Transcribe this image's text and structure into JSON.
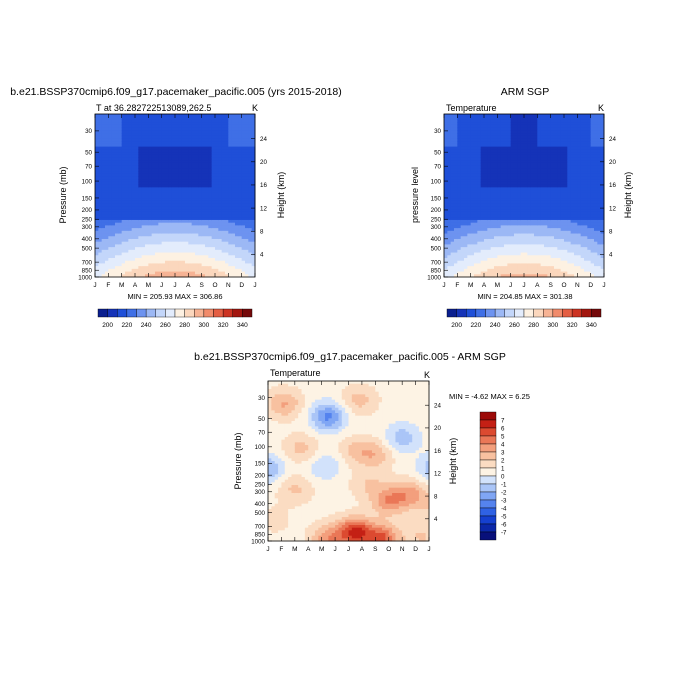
{
  "panels": [
    {
      "title": "b.e21.BSSP370cmip6.f09_g17.pacemaker_pacific.005 (yrs 2015-2018)",
      "subtitle": "T at 36.282722513089,262.5",
      "units": "K",
      "ylabel": "Pressure (mb)",
      "ylabel_right": "Height (km)",
      "minmax": "MIN = 205.93 MAX = 306.86"
    },
    {
      "title": "ARM SGP",
      "subtitle": "Temperature",
      "units": "K",
      "ylabel": "pressure level",
      "ylabel_right": "Height (km)",
      "minmax": "MIN = 204.85 MAX = 301.38"
    },
    {
      "title": "b.e21.BSSP370cmip6.f09_g17.pacemaker_pacific.005 - ARM SGP",
      "subtitle": "Temperature",
      "units": "K",
      "ylabel": "Pressure (mb)",
      "ylabel_right": "Height (km)",
      "minmax": "MIN =  -4.62 MAX =   6.25"
    }
  ],
  "chart_data": [
    {
      "type": "heatmap",
      "title": "b.e21.BSSP370cmip6.f09_g17.pacemaker_pacific.005 (yrs 2015-2018)",
      "xlabel": "",
      "ylabel": "Pressure (mb)",
      "x_ticks": [
        "J",
        "F",
        "M",
        "A",
        "M",
        "J",
        "J",
        "A",
        "S",
        "O",
        "N",
        "D",
        "J"
      ],
      "y_ticks": [
        "30",
        "50",
        "70",
        "100",
        "150",
        "200",
        "250",
        "300",
        "400",
        "500",
        "700",
        "850",
        "1000"
      ],
      "y2_ticks": [
        "24",
        "20",
        "16",
        "12",
        "8",
        "4"
      ],
      "min": 205.93,
      "max": 306.86,
      "colorbar_ticks": [
        "200",
        "220",
        "240",
        "260",
        "280",
        "300",
        "320",
        "340"
      ],
      "colors": [
        "#0a1f8f",
        "#1533b8",
        "#1f4fd8",
        "#3f6fe6",
        "#6d93f0",
        "#9cb8f5",
        "#c3d6fa",
        "#e3ecfc",
        "#fdf1e2",
        "#fbd7bd",
        "#f7b394",
        "#f18b6b",
        "#e45e43",
        "#cc3322",
        "#a3160f",
        "#75090a"
      ],
      "levels": [
        190,
        200,
        210,
        220,
        230,
        240,
        250,
        260,
        270,
        280,
        290,
        300,
        310,
        320,
        330,
        340
      ]
    },
    {
      "type": "heatmap",
      "title": "ARM SGP",
      "xlabel": "",
      "ylabel": "pressure level",
      "x_ticks": [
        "J",
        "F",
        "M",
        "A",
        "M",
        "J",
        "J",
        "A",
        "S",
        "O",
        "N",
        "D",
        "J"
      ],
      "y_ticks": [
        "30",
        "50",
        "70",
        "100",
        "150",
        "200",
        "250",
        "300",
        "400",
        "500",
        "700",
        "850",
        "1000"
      ],
      "y2_ticks": [
        "24",
        "20",
        "16",
        "12",
        "8",
        "4"
      ],
      "min": 204.85,
      "max": 301.38,
      "colorbar_ticks": [
        "200",
        "220",
        "240",
        "260",
        "280",
        "300",
        "320",
        "340"
      ]
    },
    {
      "type": "heatmap",
      "title": "b.e21.BSSP370cmip6.f09_g17.pacemaker_pacific.005 - ARM SGP",
      "xlabel": "",
      "ylabel": "Pressure (mb)",
      "x_ticks": [
        "J",
        "F",
        "M",
        "A",
        "M",
        "J",
        "J",
        "A",
        "S",
        "O",
        "N",
        "D",
        "J"
      ],
      "y_ticks": [
        "30",
        "50",
        "70",
        "100",
        "150",
        "200",
        "250",
        "300",
        "400",
        "500",
        "700",
        "850",
        "1000"
      ],
      "y2_ticks": [
        "24",
        "20",
        "16",
        "12",
        "8",
        "4"
      ],
      "min": -4.62,
      "max": 6.25,
      "colorbar_ticks": [
        "7",
        "6",
        "5",
        "4",
        "3",
        "2",
        "1",
        "0",
        "-1",
        "-2",
        "-3",
        "-4",
        "-5",
        "-6",
        "-7"
      ],
      "colors": [
        "#08107a",
        "#0b27a8",
        "#1540d0",
        "#2f62e4",
        "#5583ee",
        "#80a6f4",
        "#aac5f7",
        "#d2e2fb",
        "#fdf3e4",
        "#fbdcc2",
        "#f8c1a0",
        "#f39f7d",
        "#ea7757",
        "#dc4a30",
        "#c42015",
        "#9c0a08"
      ],
      "levels": [
        -8,
        -7,
        -6,
        -5,
        -4,
        -3,
        -2,
        -1,
        0,
        1,
        2,
        3,
        4,
        5,
        6,
        7,
        8
      ]
    }
  ]
}
